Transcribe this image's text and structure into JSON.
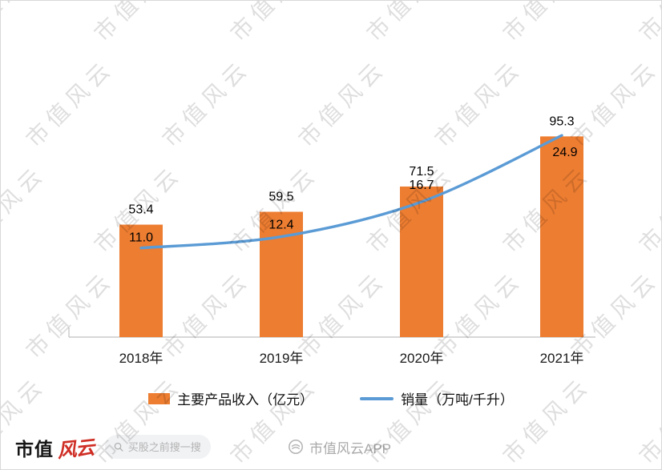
{
  "watermark": {
    "text": "市值风云"
  },
  "chart_data": {
    "type": "combo-bar-line",
    "title": "",
    "xlabel": "",
    "ylabel": "",
    "categories": [
      "2018年",
      "2019年",
      "2020年",
      "2021年"
    ],
    "series": [
      {
        "name": "主要产品收入（亿元）",
        "type": "bar",
        "axis": "primary",
        "color": "#ED7D31",
        "values": [
          53.4,
          59.5,
          71.5,
          95.3
        ]
      },
      {
        "name": "销量（万吨/千升）",
        "type": "line",
        "axis": "secondary",
        "color": "#5B9BD5",
        "values": [
          11.0,
          12.4,
          16.7,
          24.9
        ]
      }
    ],
    "ylim_primary": [
      0,
      100
    ],
    "ylim_secondary": [
      0,
      26
    ],
    "grid": false,
    "legend_position": "bottom",
    "axis_color": "#bfbfbf",
    "label_color": "#000000"
  },
  "footer": {
    "brand_text": "市值",
    "brand_script": "风云",
    "search_placeholder": "买股之前搜一搜",
    "app_label": "市值风云APP"
  }
}
